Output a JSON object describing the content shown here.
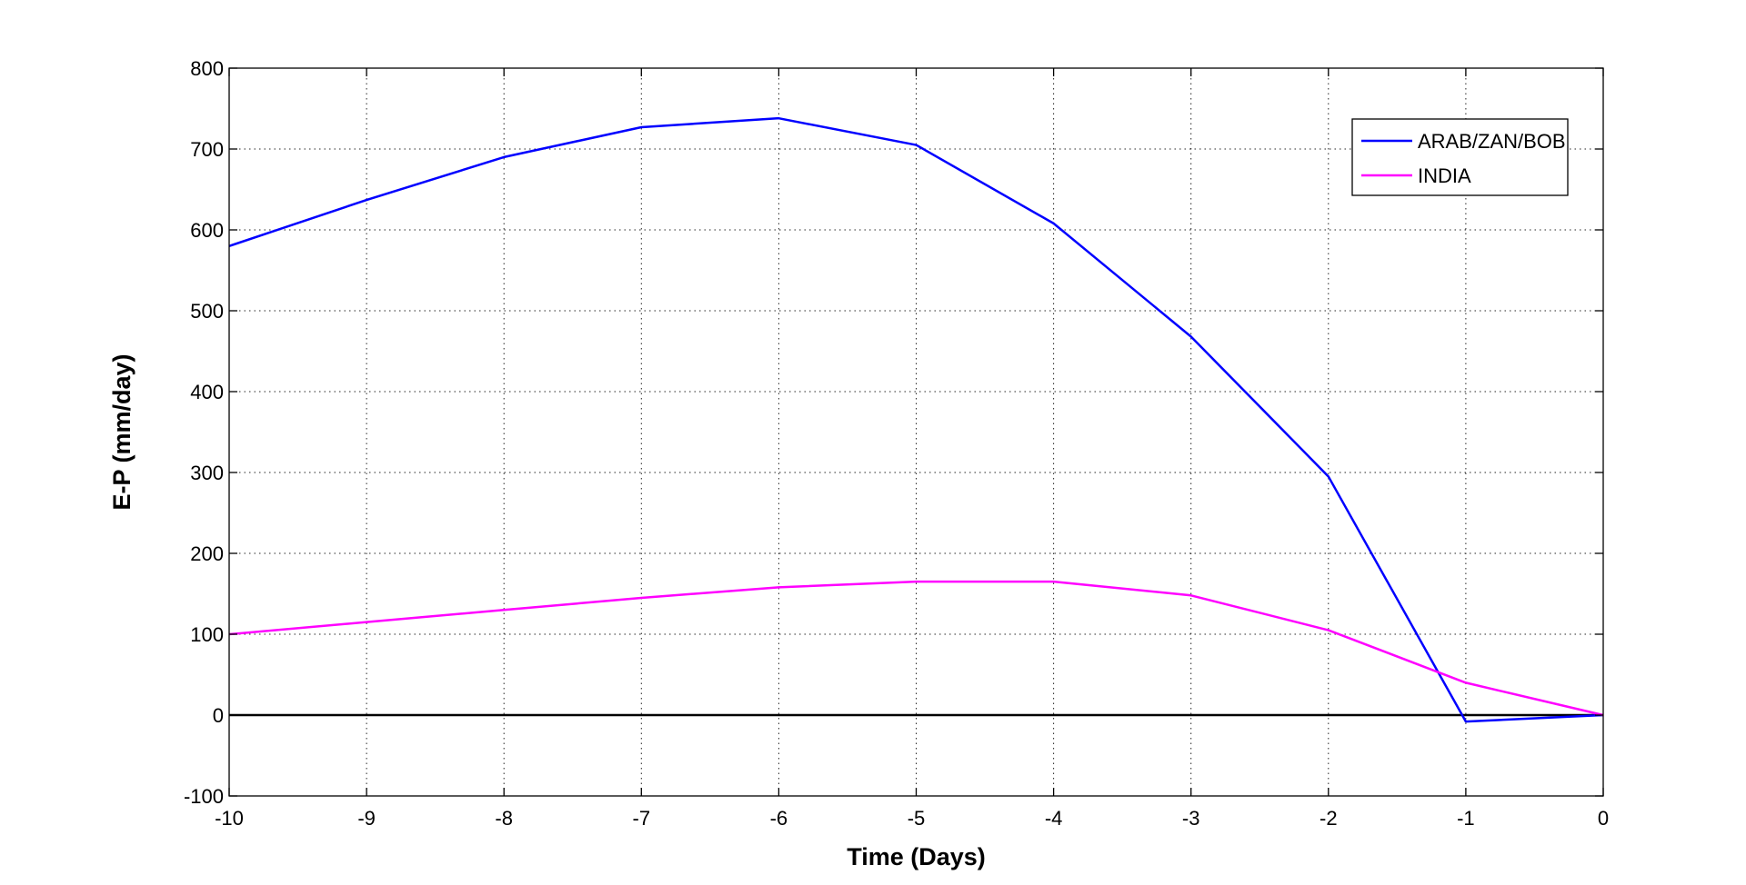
{
  "chart_data": {
    "type": "line",
    "title": "",
    "xlabel": "Time (Days)",
    "ylabel": "E-P (mm/day)",
    "xlim": [
      -10,
      0
    ],
    "ylim": [
      -100,
      800
    ],
    "grid": true,
    "legend_position": "top-right",
    "x": [
      -10,
      -9,
      -8,
      -7,
      -6,
      -5,
      -4,
      -3,
      -2,
      -1,
      0
    ],
    "x_tick_labels": [
      "-10",
      "-9",
      "-8",
      "-7",
      "-6",
      "-5",
      "-4",
      "-3",
      "-2",
      "-1",
      "0"
    ],
    "y_ticks": [
      -100,
      0,
      100,
      200,
      300,
      400,
      500,
      600,
      700,
      800
    ],
    "y_tick_labels": [
      "-100",
      "0",
      "100",
      "200",
      "300",
      "400",
      "500",
      "600",
      "700",
      "800"
    ],
    "reference_line": {
      "y": 0,
      "color": "#000000"
    },
    "series": [
      {
        "name": "ARAB/ZAN/BOB",
        "color": "#0000ff",
        "values": [
          580,
          637,
          690,
          727,
          738,
          705,
          608,
          468,
          295,
          -8,
          0
        ]
      },
      {
        "name": "INDIA",
        "color": "#ff00ff",
        "values": [
          100,
          115,
          130,
          145,
          158,
          165,
          165,
          148,
          105,
          40,
          0
        ]
      }
    ]
  }
}
